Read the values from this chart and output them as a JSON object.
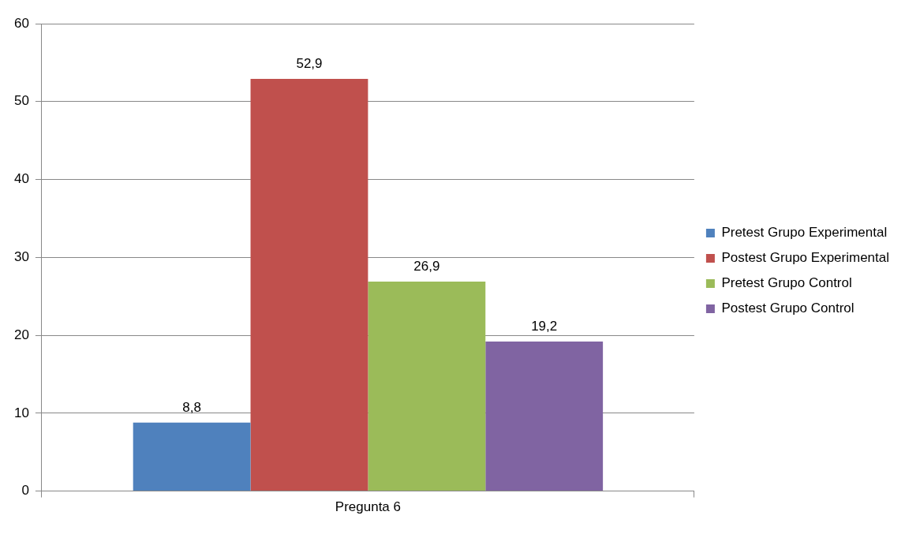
{
  "chart_data": {
    "type": "bar",
    "categories": [
      "Pregunta 6"
    ],
    "series": [
      {
        "name": "Pretest Grupo Experimental",
        "color": "#4f81bd",
        "values": [
          8.8
        ],
        "value_labels": [
          "8,8"
        ]
      },
      {
        "name": "Postest Grupo Experimental",
        "color": "#c0504d",
        "values": [
          52.9
        ],
        "value_labels": [
          "52,9"
        ]
      },
      {
        "name": "Pretest Grupo Control",
        "color": "#9bbb59",
        "values": [
          26.9
        ],
        "value_labels": [
          "26,9"
        ]
      },
      {
        "name": "Postest Grupo Control",
        "color": "#8064a2",
        "values": [
          19.2
        ],
        "value_labels": [
          "19,2"
        ]
      }
    ],
    "ylim": [
      0,
      60
    ],
    "yticks": [
      0,
      10,
      20,
      30,
      40,
      50,
      60
    ],
    "grid": "y",
    "legend": "right"
  }
}
